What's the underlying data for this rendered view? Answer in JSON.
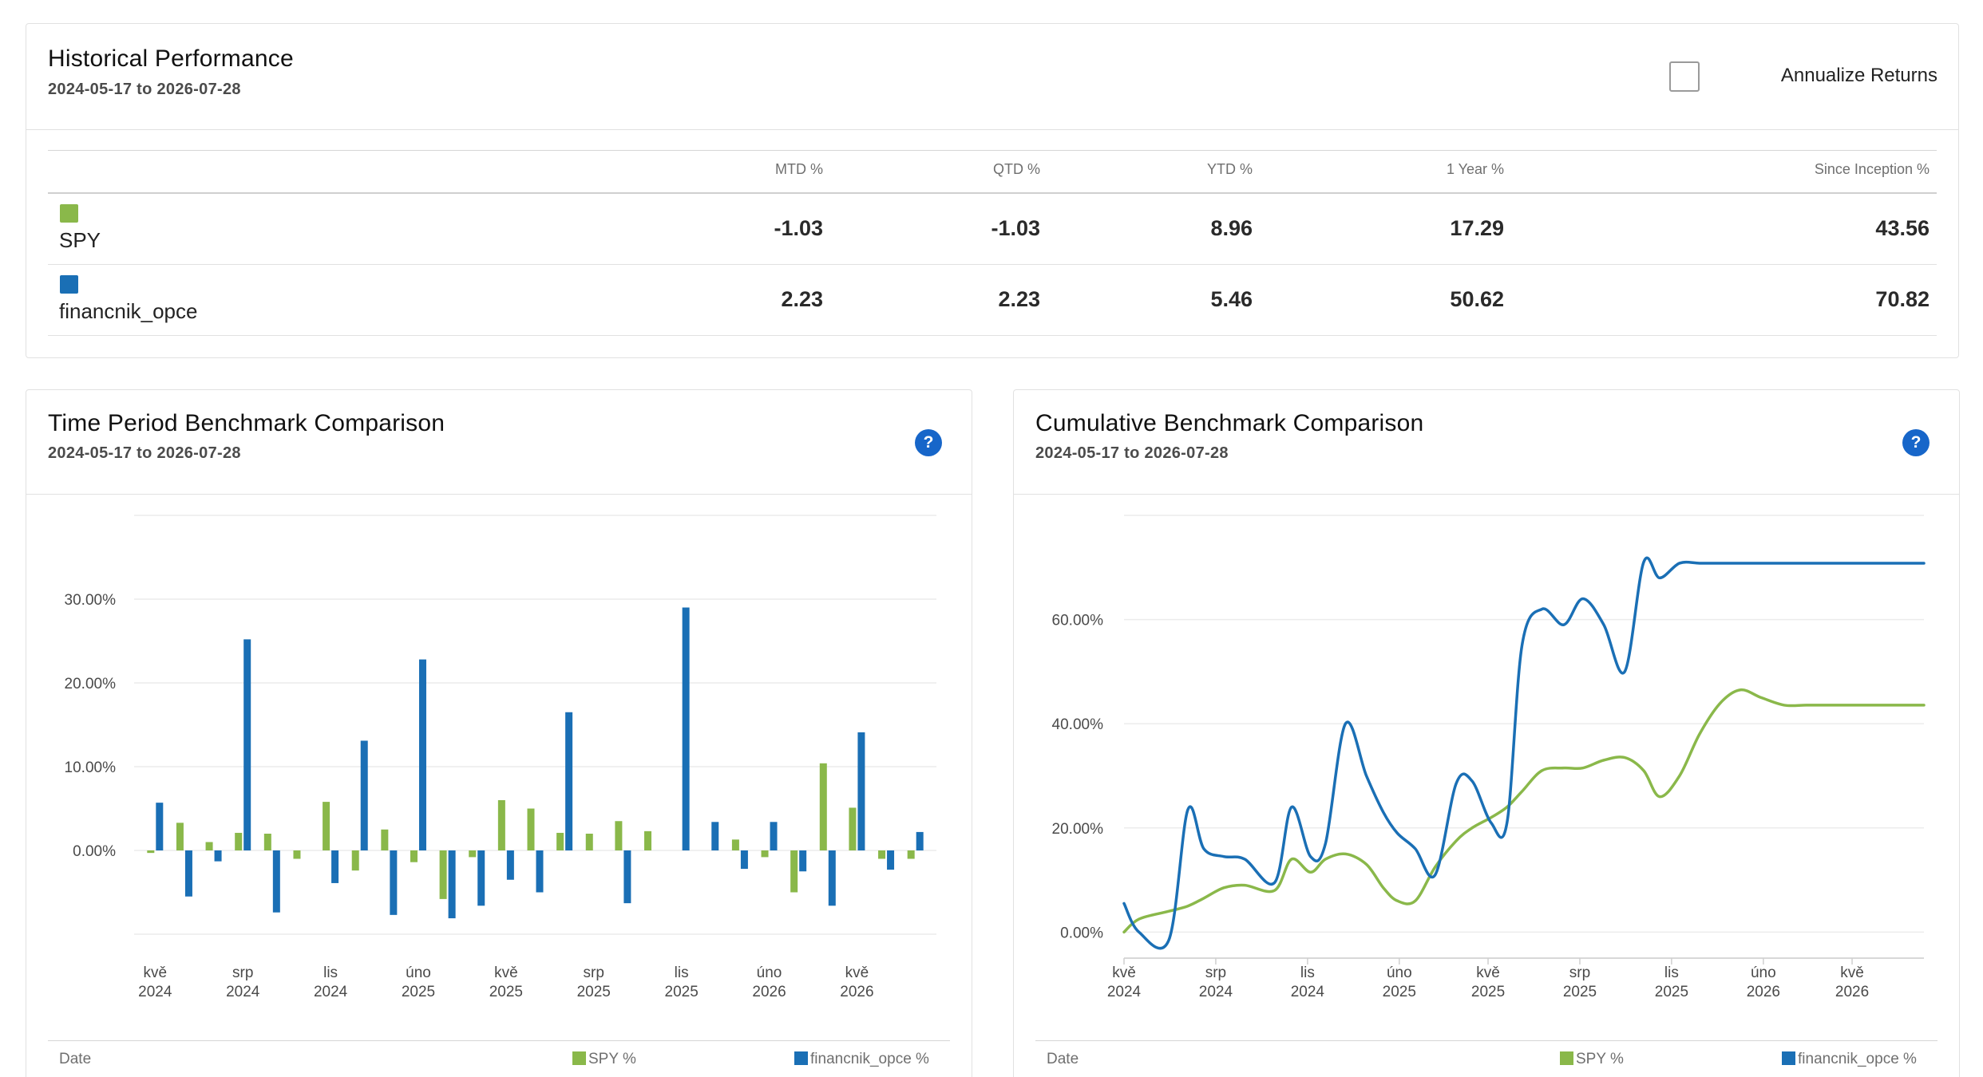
{
  "colors": {
    "spy": "#8ab84a",
    "financnik": "#1a6fb5",
    "grid": "#ececec",
    "axis": "#cfcfcf"
  },
  "historical": {
    "title": "Historical Performance",
    "date_range": "2024-05-17 to 2026-07-28",
    "annualize_label": "Annualize Returns",
    "annualize_checked": false,
    "columns": [
      "MTD %",
      "QTD %",
      "YTD %",
      "1 Year %",
      "Since Inception %"
    ],
    "rows": [
      {
        "name": "SPY",
        "color": "#8ab84a",
        "values": [
          "-1.03",
          "-1.03",
          "8.96",
          "17.29",
          "43.56"
        ]
      },
      {
        "name": "financnik_opce",
        "color": "#1a6fb5",
        "values": [
          "2.23",
          "2.23",
          "5.46",
          "50.62",
          "70.82"
        ]
      }
    ]
  },
  "time_period": {
    "title": "Time Period Benchmark Comparison",
    "date_range": "2024-05-17 to 2026-07-28",
    "help_icon": "question-icon",
    "legend": {
      "date_label": "Date",
      "spy_label": "SPY %",
      "fin_label": "financnik_opce %"
    }
  },
  "cumulative": {
    "title": "Cumulative Benchmark Comparison",
    "date_range": "2024-05-17 to 2026-07-28",
    "help_icon": "question-icon",
    "legend": {
      "date_label": "Date",
      "spy_label": "SPY %",
      "fin_label": "financnik_opce %"
    }
  },
  "chart_data": [
    {
      "type": "bar",
      "x_ticks": [
        [
          "kvě",
          "2024"
        ],
        [
          "srp",
          "2024"
        ],
        [
          "lis",
          "2024"
        ],
        [
          "úno",
          "2025"
        ],
        [
          "kvě",
          "2025"
        ],
        [
          "srp",
          "2025"
        ],
        [
          "lis",
          "2025"
        ],
        [
          "úno",
          "2026"
        ],
        [
          "kvě",
          "2026"
        ]
      ],
      "categories": [
        "2024-05",
        "2024-06",
        "2024-07",
        "2024-08",
        "2024-09",
        "2024-10",
        "2024-11",
        "2024-12",
        "2025-01",
        "2025-02",
        "2025-03",
        "2025-04",
        "2025-05",
        "2025-06",
        "2025-07",
        "2025-08",
        "2025-09",
        "2025-10",
        "2025-11",
        "2025-12",
        "2026-01",
        "2026-02",
        "2026-03",
        "2026-04",
        "2026-05",
        "2026-06",
        "2026-07"
      ],
      "series": [
        {
          "name": "SPY %",
          "values": [
            -0.3,
            3.3,
            1.0,
            2.1,
            2.0,
            -1.0,
            5.8,
            -2.4,
            2.5,
            -1.4,
            -5.8,
            -0.8,
            6.0,
            5.0,
            2.1,
            2.0,
            3.5,
            2.3,
            0.0,
            0.0,
            1.3,
            -0.8,
            -5.0,
            10.4,
            5.1,
            -1.0,
            -1.0
          ]
        },
        {
          "name": "financnik_opce %",
          "values": [
            5.7,
            -5.5,
            -1.3,
            25.2,
            -7.4,
            0.0,
            -3.9,
            13.1,
            -7.7,
            22.8,
            -8.1,
            -6.6,
            -3.5,
            -5.0,
            16.5,
            0.0,
            -6.3,
            0.0,
            29.0,
            3.4,
            -2.2,
            3.4,
            -2.5,
            -6.6,
            14.1,
            -2.3,
            2.2
          ]
        }
      ],
      "y_ticks": [
        "0.00%",
        "10.00%",
        "20.00%",
        "30.00%"
      ],
      "ylim": [
        -10,
        40
      ],
      "grid": true,
      "legend_position": "bottom"
    },
    {
      "type": "line",
      "x_ticks": [
        [
          "kvě",
          "2024"
        ],
        [
          "srp",
          "2024"
        ],
        [
          "lis",
          "2024"
        ],
        [
          "úno",
          "2025"
        ],
        [
          "kvě",
          "2025"
        ],
        [
          "srp",
          "2025"
        ],
        [
          "lis",
          "2025"
        ],
        [
          "úno",
          "2026"
        ],
        [
          "kvě",
          "2026"
        ]
      ],
      "x": [
        "2024-05-17",
        "2024-06-01",
        "2024-07-01",
        "2024-07-20",
        "2024-08-05",
        "2024-08-25",
        "2024-09-15",
        "2024-10-15",
        "2024-11-01",
        "2024-11-20",
        "2024-12-05",
        "2024-12-25",
        "2025-01-15",
        "2025-02-01",
        "2025-02-15",
        "2025-03-05",
        "2025-03-25",
        "2025-04-15",
        "2025-05-01",
        "2025-05-20",
        "2025-06-05",
        "2025-06-20",
        "2025-07-10",
        "2025-08-01",
        "2025-08-20",
        "2025-09-10",
        "2025-10-01",
        "2025-10-20",
        "2025-11-05",
        "2025-11-25",
        "2025-12-15",
        "2026-01-05",
        "2026-01-25",
        "2026-02-15",
        "2026-03-10",
        "2026-04-01",
        "2026-04-25",
        "2026-05-15",
        "2026-06-05",
        "2026-06-25",
        "2026-07-28"
      ],
      "series": [
        {
          "name": "SPY %",
          "values": [
            0.0,
            2.5,
            4.0,
            5.0,
            6.5,
            8.5,
            9.0,
            8.0,
            14.0,
            11.5,
            14.0,
            15.0,
            13.0,
            8.5,
            6.0,
            6.0,
            12.5,
            17.5,
            20.0,
            22.0,
            24.0,
            27.0,
            31.0,
            31.5,
            31.5,
            33.0,
            33.5,
            31.0,
            26.0,
            30.0,
            38.0,
            44.0,
            46.5,
            45.0,
            43.56,
            43.56,
            43.56,
            43.56,
            43.56,
            43.56,
            43.56
          ]
        },
        {
          "name": "financnik_opce %",
          "values": [
            5.5,
            0.0,
            -1.5,
            23.5,
            16.0,
            14.5,
            14.0,
            9.5,
            24.0,
            14.5,
            17.0,
            40.0,
            30.0,
            23.0,
            19.0,
            16.0,
            11.0,
            28.5,
            29.0,
            21.0,
            21.0,
            55.0,
            62.0,
            59.0,
            64.0,
            59.0,
            50.0,
            71.0,
            68.0,
            70.82,
            70.82,
            70.82,
            70.82,
            70.82,
            70.82,
            70.82,
            70.82,
            70.82,
            70.82,
            70.82,
            70.82
          ]
        }
      ],
      "y_ticks": [
        "0.00%",
        "20.00%",
        "40.00%",
        "60.00%"
      ],
      "ylim": [
        -5,
        80
      ],
      "grid": true,
      "legend_position": "bottom"
    }
  ]
}
